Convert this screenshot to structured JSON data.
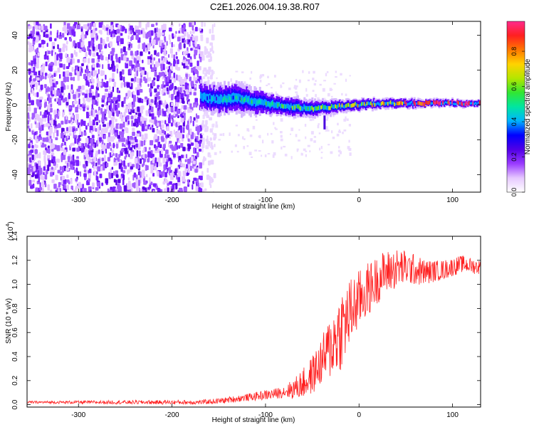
{
  "title": "C2E1.2026.004.19.38.R07",
  "chart_data": [
    {
      "type": "heatmap",
      "panel": "top",
      "xlabel": "Height of straight line (km)",
      "ylabel": "Frequency (Hz)",
      "xlim": [
        -355,
        130
      ],
      "ylim": [
        -50,
        48
      ],
      "xticks": [
        -300,
        -200,
        -100,
        0,
        100
      ],
      "xtick_labels": [
        "-300",
        "-200",
        "-100",
        "0",
        "100"
      ],
      "yticks": [
        -40,
        -20,
        0,
        20,
        40
      ],
      "ytick_labels": [
        "-40",
        "-20",
        "0",
        "20",
        "40"
      ],
      "noise_region_x": [
        -355,
        -170
      ],
      "signal_centerline": {
        "x": [
          -170,
          -150,
          -130,
          -110,
          -90,
          -70,
          -50,
          -30,
          -10,
          10,
          30,
          50,
          70,
          90,
          110,
          130
        ],
        "freq": [
          5,
          3,
          4,
          2,
          0,
          -1,
          -2,
          -1,
          0,
          0.5,
          1,
          1,
          1,
          1,
          1,
          1
        ]
      },
      "signal_halfwidth": {
        "x": [
          -170,
          -130,
          -90,
          -50,
          -10,
          30,
          70,
          130
        ],
        "hz": [
          8,
          9,
          6,
          5,
          3.5,
          3,
          2.5,
          2
        ]
      },
      "colorbar": {
        "label": "Normalized spectral amplitude",
        "range": [
          0,
          0.97
        ],
        "ticks": [
          0.0,
          0.2,
          0.4,
          0.6,
          0.8
        ],
        "tick_labels": [
          "0.0",
          "0.2",
          "0.4",
          "0.6",
          "0.8"
        ],
        "colors": [
          "#ffffff",
          "#e6c8ff",
          "#9a3cff",
          "#5000e6",
          "#0000ff",
          "#00b4ff",
          "#00e6a0",
          "#32e632",
          "#b4e600",
          "#ffd200",
          "#ff7800",
          "#ff2020",
          "#ff2a8c"
        ]
      }
    },
    {
      "type": "line",
      "panel": "bottom",
      "xlabel": "Height of straight line (km)",
      "ylabel": "SNR (10 * v/v)",
      "y_multiplier": "(x10",
      "y_multiplier_exp": "4",
      "y_multiplier_close": ")",
      "xlim": [
        -355,
        130
      ],
      "ylim": [
        -0.02,
        1.4
      ],
      "xticks": [
        -300,
        -200,
        -100,
        0,
        100
      ],
      "xtick_labels": [
        "-300",
        "-200",
        "-100",
        "0",
        "100"
      ],
      "yticks": [
        0.0,
        0.2,
        0.4,
        0.6,
        0.8,
        1.0,
        1.2,
        1.4
      ],
      "ytick_labels": [
        "0.0",
        "0.2",
        "0.4",
        "0.6",
        "0.8",
        "1.0",
        "1.2",
        "1.4"
      ],
      "color": "#ff2020",
      "series": [
        {
          "name": "SNR",
          "x": [
            -355,
            -300,
            -250,
            -200,
            -170,
            -150,
            -130,
            -110,
            -90,
            -70,
            -55,
            -45,
            -35,
            -25,
            -18,
            -12,
            -8,
            -2,
            5,
            15,
            25,
            35,
            45,
            55,
            70,
            90,
            110,
            130
          ],
          "y": [
            0.02,
            0.02,
            0.02,
            0.02,
            0.02,
            0.03,
            0.05,
            0.07,
            0.09,
            0.13,
            0.2,
            0.3,
            0.42,
            0.55,
            0.65,
            0.72,
            0.78,
            0.85,
            0.92,
            1.0,
            1.08,
            1.12,
            1.14,
            1.13,
            1.1,
            1.12,
            1.17,
            1.14
          ]
        }
      ],
      "noise_amplitude": {
        "x": [
          -355,
          -160,
          -120,
          -80,
          -40,
          -20,
          0,
          20,
          40,
          60,
          80,
          130
        ],
        "amp": [
          0.01,
          0.02,
          0.03,
          0.05,
          0.2,
          0.35,
          0.25,
          0.2,
          0.17,
          0.13,
          0.09,
          0.06
        ]
      }
    }
  ]
}
